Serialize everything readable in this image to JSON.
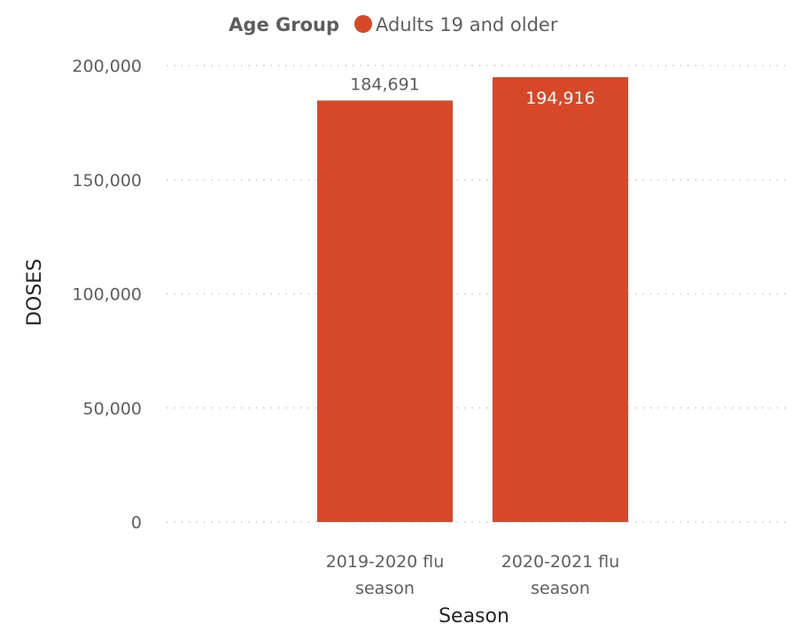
{
  "chart_data": {
    "type": "bar",
    "legend": {
      "title": "Age Group",
      "placement": "top"
    },
    "categories": [
      [
        "2019-2020 flu",
        "season"
      ],
      [
        "2020-2021 flu",
        "season"
      ]
    ],
    "series": [
      {
        "name": "Adults 19 and older",
        "color": "#d64827",
        "values": [
          184691,
          194916
        ],
        "data_labels": [
          "184,691",
          "194,916"
        ]
      }
    ],
    "xlabel": "Season",
    "ylabel": "DOSES",
    "ylim": [
      0,
      200000
    ],
    "yticks": [
      {
        "value": 0,
        "label": "0"
      },
      {
        "value": 50000,
        "label": "50,000"
      },
      {
        "value": 100000,
        "label": "100,000"
      },
      {
        "value": 150000,
        "label": "150,000"
      },
      {
        "value": 200000,
        "label": "200,000"
      }
    ],
    "grid": true
  }
}
